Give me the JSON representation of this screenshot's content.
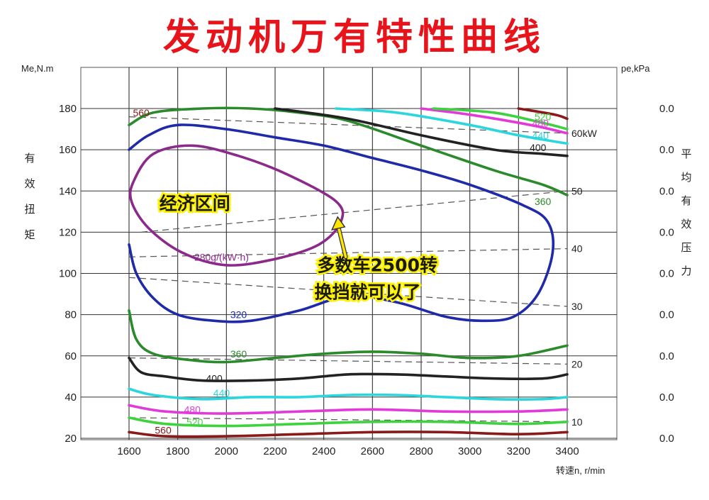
{
  "title": "发动机万有特性曲线",
  "chart_data": {
    "type": "line",
    "title": "发动机万有特性曲线",
    "xlabel": "转速n, r/min",
    "ylabel_unit": "Me,N.m",
    "ylabel": "有效扭矩",
    "y2label_unit": "pe,kPa",
    "y2label": "平均有效压力",
    "x_ticks": [
      1600,
      1800,
      2000,
      2200,
      2400,
      2600,
      2800,
      3000,
      3200,
      3400
    ],
    "y_ticks": [
      20,
      40,
      60,
      80,
      100,
      120,
      140,
      160,
      180
    ],
    "y2_ticks": [
      "0.0",
      "0.0",
      "0.0",
      "0.0",
      "0.0",
      "0.0",
      "0.0",
      "0.0",
      "0.0"
    ],
    "xlim": [
      1600,
      3400
    ],
    "ylim": [
      20,
      180
    ],
    "grid": true,
    "power_lines": [
      {
        "label": "60kW",
        "points": [
          [
            1600,
            176
          ],
          [
            3400,
            168
          ]
        ]
      },
      {
        "label": "50",
        "points": [
          [
            1650,
            120
          ],
          [
            3400,
            140
          ]
        ]
      },
      {
        "label": "40",
        "points": [
          [
            1600,
            108
          ],
          [
            3400,
            112
          ]
        ]
      },
      {
        "label": "30",
        "points": [
          [
            1600,
            98
          ],
          [
            3400,
            84
          ]
        ]
      },
      {
        "label": "20",
        "points": [
          [
            1600,
            59
          ],
          [
            3400,
            56
          ]
        ]
      },
      {
        "label": "10",
        "points": [
          [
            1600,
            30
          ],
          [
            3400,
            28
          ]
        ]
      }
    ],
    "bsfc_contours": [
      {
        "label": "280g/(kW·h)",
        "color": "#8b2a8b",
        "closed": true,
        "points": [
          [
            1620,
            145
          ],
          [
            1700,
            158
          ],
          [
            1860,
            162
          ],
          [
            2050,
            157
          ],
          [
            2250,
            148
          ],
          [
            2450,
            135
          ],
          [
            2470,
            125
          ],
          [
            2380,
            114
          ],
          [
            2200,
            107
          ],
          [
            2000,
            104
          ],
          [
            1820,
            110
          ],
          [
            1680,
            122
          ],
          [
            1610,
            135
          ]
        ]
      },
      {
        "label": "320",
        "color": "#1e2aa8",
        "closed": false,
        "points": [
          [
            1600,
            114
          ],
          [
            1630,
            100
          ],
          [
            1700,
            88
          ],
          [
            1800,
            80
          ],
          [
            1950,
            77
          ],
          [
            2100,
            77
          ],
          [
            2300,
            82
          ],
          [
            2500,
            89
          ],
          [
            2700,
            86
          ],
          [
            2900,
            79
          ],
          [
            3050,
            77
          ],
          [
            3180,
            79
          ],
          [
            3280,
            90
          ],
          [
            3340,
            110
          ],
          [
            3320,
            125
          ],
          [
            3220,
            133
          ],
          [
            3000,
            143
          ],
          [
            2800,
            150
          ],
          [
            2600,
            156
          ],
          [
            2400,
            162
          ],
          [
            2200,
            166
          ],
          [
            2000,
            170
          ],
          [
            1800,
            172
          ],
          [
            1680,
            167
          ],
          [
            1600,
            160
          ]
        ]
      },
      {
        "label": "360",
        "color": "#2b8a2b",
        "closed": false,
        "points": [
          [
            1600,
            82
          ],
          [
            1630,
            68
          ],
          [
            1700,
            61
          ],
          [
            1850,
            58
          ],
          [
            2000,
            57
          ],
          [
            2200,
            59
          ],
          [
            2400,
            61
          ],
          [
            2600,
            62
          ],
          [
            2800,
            61
          ],
          [
            3000,
            59
          ],
          [
            3200,
            60
          ],
          [
            3400,
            65
          ]
        ]
      },
      {
        "label": "360",
        "color": "#2b8a2b",
        "closed": false,
        "points": [
          [
            1600,
            172
          ],
          [
            1700,
            178
          ],
          [
            1900,
            180
          ],
          [
            2100,
            180
          ],
          [
            2300,
            178
          ],
          [
            2500,
            174
          ],
          [
            2800,
            162
          ],
          [
            3100,
            150
          ],
          [
            3300,
            143
          ],
          [
            3400,
            138
          ]
        ]
      },
      {
        "label": "400",
        "color": "#222222",
        "closed": false,
        "points": [
          [
            1600,
            59
          ],
          [
            1650,
            52
          ],
          [
            1750,
            50
          ],
          [
            1900,
            48
          ],
          [
            2100,
            48
          ],
          [
            2300,
            49
          ],
          [
            2500,
            51
          ],
          [
            2700,
            51
          ],
          [
            2900,
            50
          ],
          [
            3100,
            49
          ],
          [
            3300,
            49
          ],
          [
            3400,
            51
          ]
        ]
      },
      {
        "label": "400",
        "color": "#222222",
        "closed": false,
        "points": [
          [
            2200,
            180
          ],
          [
            2500,
            175
          ],
          [
            2800,
            167
          ],
          [
            3100,
            160
          ],
          [
            3300,
            158
          ],
          [
            3400,
            157
          ]
        ]
      },
      {
        "label": "440",
        "color": "#2bd6dc",
        "closed": false,
        "points": [
          [
            1600,
            44
          ],
          [
            1700,
            41
          ],
          [
            1900,
            39
          ],
          [
            2100,
            40
          ],
          [
            2300,
            40
          ],
          [
            2500,
            41
          ],
          [
            2700,
            41
          ],
          [
            2900,
            40
          ],
          [
            3100,
            39
          ],
          [
            3300,
            39
          ],
          [
            3400,
            40
          ]
        ]
      },
      {
        "label": "440",
        "color": "#2bd6dc",
        "closed": false,
        "points": [
          [
            2450,
            180
          ],
          [
            2700,
            178
          ],
          [
            3000,
            172
          ],
          [
            3200,
            167
          ],
          [
            3400,
            163
          ]
        ]
      },
      {
        "label": "480",
        "color": "#e23ad8",
        "closed": false,
        "points": [
          [
            1600,
            36
          ],
          [
            1750,
            33
          ],
          [
            2000,
            32
          ],
          [
            2300,
            33
          ],
          [
            2600,
            34
          ],
          [
            2900,
            33
          ],
          [
            3200,
            33
          ],
          [
            3400,
            34
          ]
        ]
      },
      {
        "label": "480",
        "color": "#e23ad8",
        "closed": false,
        "points": [
          [
            2800,
            180
          ],
          [
            3000,
            177
          ],
          [
            3250,
            172
          ],
          [
            3400,
            168
          ]
        ]
      },
      {
        "label": "520",
        "color": "#3fd23f",
        "closed": false,
        "points": [
          [
            1600,
            30
          ],
          [
            1750,
            27
          ],
          [
            2000,
            26
          ],
          [
            2300,
            27
          ],
          [
            2600,
            28
          ],
          [
            2900,
            28
          ],
          [
            3200,
            27
          ],
          [
            3400,
            28
          ]
        ]
      },
      {
        "label": "520",
        "color": "#3fd23f",
        "closed": false,
        "points": [
          [
            2850,
            180
          ],
          [
            3100,
            178
          ],
          [
            3300,
            173
          ],
          [
            3400,
            170
          ]
        ]
      },
      {
        "label": "560",
        "color": "#8a1a1a",
        "closed": false,
        "points": [
          [
            1600,
            23
          ],
          [
            1750,
            21
          ],
          [
            2000,
            21
          ],
          [
            2300,
            22
          ],
          [
            2600,
            23
          ],
          [
            2900,
            23
          ],
          [
            3200,
            22
          ],
          [
            3400,
            23
          ]
        ]
      },
      {
        "label": "560",
        "color": "#8a1a1a",
        "closed": false,
        "points": [
          [
            3200,
            180
          ],
          [
            3350,
            177
          ],
          [
            3400,
            175
          ]
        ]
      }
    ],
    "annotations": [
      {
        "text": "经济区间"
      },
      {
        "text_line1": "多数车2500转",
        "text_line2": "换挡就可以了"
      }
    ]
  }
}
